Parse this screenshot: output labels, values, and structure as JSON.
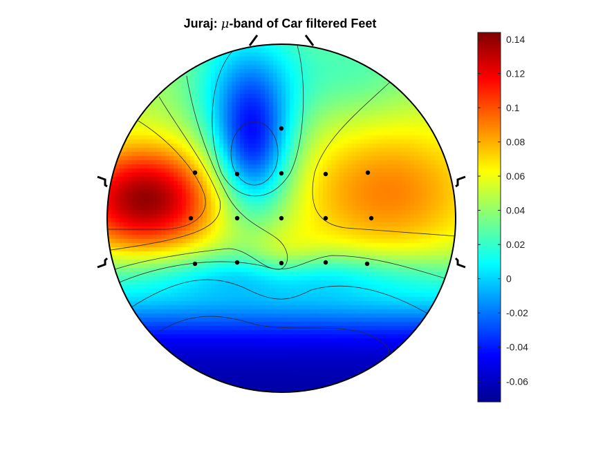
{
  "chart_data": {
    "type": "heatmap",
    "subtype": "eeg-topographic-map",
    "title": {
      "prefix": "Juraj: ",
      "symbol": "μ",
      "suffix": "-band of Car filtered Feet"
    },
    "colormap": "jet",
    "colorbar": {
      "range": [
        -0.072,
        0.144
      ],
      "ticks": [
        -0.06,
        -0.04,
        -0.02,
        0,
        0.02,
        0.04,
        0.06,
        0.08,
        0.1,
        0.12,
        0.14
      ],
      "tick_labels": [
        "-0.06",
        "-0.04",
        "-0.02",
        "0",
        "0.02",
        "0.04",
        "0.06",
        "0.08",
        "0.1",
        "0.12",
        "0.14"
      ]
    },
    "head": {
      "nose": "top",
      "ears": "left and right"
    },
    "contours": true,
    "electrodes_note": "16 electrodes shown as black dots (unlabeled)",
    "field_samples": [
      {
        "region": "left temporal",
        "value": 0.135
      },
      {
        "region": "right centro-parietal",
        "value": 0.085
      },
      {
        "region": "frontal midline",
        "value": -0.03
      },
      {
        "region": "occipital",
        "value": -0.055
      }
    ]
  }
}
